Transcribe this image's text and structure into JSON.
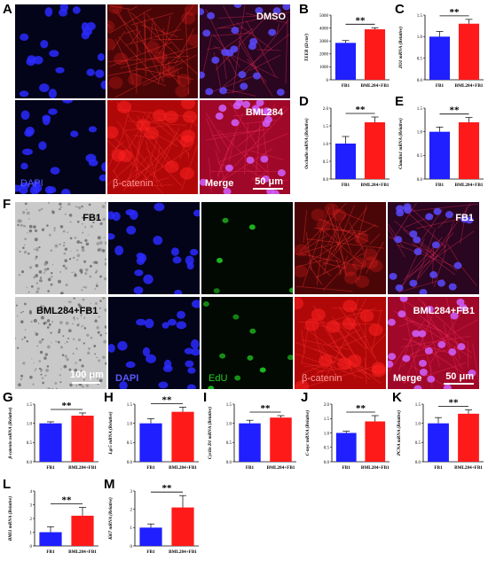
{
  "panel_letters": [
    "A",
    "B",
    "C",
    "D",
    "E",
    "F",
    "G",
    "H",
    "I",
    "J",
    "K",
    "L",
    "M"
  ],
  "panel_a": {
    "dmso": "DMSO",
    "bml284": "BML284",
    "dapi": "DAPI",
    "beta_catenin": "β-catenin",
    "merge": "Merge",
    "scale": "50 μm"
  },
  "panel_f": {
    "fb1": "FB1",
    "bml_fb1": "BML284+FB1",
    "scale_bright": "100 μm",
    "dapi": "DAPI",
    "edu": "EdU",
    "beta_catenin": "β-catenin",
    "merge": "Merge",
    "scale": "50 μm",
    "merge_fb1": "FB1",
    "merge_bml": "BML284+FB1"
  },
  "colors": {
    "blue": "#1f1fff",
    "red": "#ff1a1a",
    "dapi": "#2a2aff",
    "catenin": "#ff2020"
  },
  "chart_data": [
    {
      "id": "B",
      "type": "bar",
      "categories": [
        "FB1",
        "BML284+FB1"
      ],
      "values": [
        2850,
        3900
      ],
      "errors": [
        180,
        120
      ],
      "ylabel": "TEER (Ω·cm²)",
      "ylim": [
        0,
        5000
      ],
      "yticks": [
        "0",
        "1000",
        "2000",
        "3000",
        "4000",
        "5000"
      ],
      "sig": "**"
    },
    {
      "id": "C",
      "type": "bar",
      "categories": [
        "FB1",
        "BML284+FB1"
      ],
      "values": [
        1.0,
        1.3
      ],
      "errors": [
        0.12,
        0.1
      ],
      "ylabel": "ZO1 mRNA (Relative)",
      "ylim": [
        0,
        1.5
      ],
      "yticks": [
        "0.0",
        "0.5",
        "1.0",
        "1.5"
      ],
      "sig": "**"
    },
    {
      "id": "D",
      "type": "bar",
      "categories": [
        "FB1",
        "BML284+FB1"
      ],
      "values": [
        1.0,
        1.6
      ],
      "errors": [
        0.2,
        0.15
      ],
      "ylabel": "Occludin mRNA (Relative)",
      "ylim": [
        0,
        2
      ],
      "yticks": [
        "0.0",
        "0.5",
        "1.0",
        "1.5",
        "2.0"
      ],
      "sig": "**"
    },
    {
      "id": "E",
      "type": "bar",
      "categories": [
        "FB1",
        "BML284+FB1"
      ],
      "values": [
        1.0,
        1.2
      ],
      "errors": [
        0.1,
        0.1
      ],
      "ylabel": "Claudin1 mRNA (Relative)",
      "ylim": [
        0,
        1.5
      ],
      "yticks": [
        "0.0",
        "0.5",
        "1.0",
        "1.5"
      ],
      "sig": "**"
    },
    {
      "id": "G",
      "type": "bar",
      "categories": [
        "FB1",
        "BML284+FB1"
      ],
      "values": [
        1.0,
        1.2
      ],
      "errors": [
        0.04,
        0.07
      ],
      "ylabel": "β-catenin mRNA (Relative)",
      "ylim": [
        0,
        1.5
      ],
      "yticks": [
        "0.0",
        "0.5",
        "1.0",
        "1.5"
      ],
      "sig": "**"
    },
    {
      "id": "H",
      "type": "bar",
      "categories": [
        "FB1",
        "BML284+FB1"
      ],
      "values": [
        1.0,
        1.3
      ],
      "errors": [
        0.12,
        0.12
      ],
      "ylabel": "Lgr5 mRNA (Relative)",
      "ylim": [
        0,
        1.5
      ],
      "yticks": [
        "0.0",
        "0.5",
        "1.0",
        "1.5"
      ],
      "sig": "**"
    },
    {
      "id": "I",
      "type": "bar",
      "categories": [
        "FB1",
        "BML284+FB1"
      ],
      "values": [
        1.0,
        1.15
      ],
      "errors": [
        0.08,
        0.05
      ],
      "ylabel": "Cyclin D1 mRNA (Relative)",
      "ylim": [
        0,
        1.5
      ],
      "yticks": [
        "0.0",
        "0.5",
        "1.0",
        "1.5"
      ],
      "sig": "**"
    },
    {
      "id": "J",
      "type": "bar",
      "categories": [
        "FB1",
        "BML284+FB1"
      ],
      "values": [
        1.0,
        1.4
      ],
      "errors": [
        0.06,
        0.2
      ],
      "ylabel": "C-myc mRNA (Relative)",
      "ylim": [
        0,
        2
      ],
      "yticks": [
        "0.0",
        "0.5",
        "1.0",
        "1.5",
        "2.0"
      ],
      "sig": "**"
    },
    {
      "id": "K",
      "type": "bar",
      "categories": [
        "FB1",
        "BML284+FB1"
      ],
      "values": [
        1.0,
        1.25
      ],
      "errors": [
        0.15,
        0.1
      ],
      "ylabel": "PCNA mRNA (Relative)",
      "ylim": [
        0,
        1.5
      ],
      "yticks": [
        "0.0",
        "0.5",
        "1.0",
        "1.5"
      ],
      "sig": "**"
    },
    {
      "id": "L",
      "type": "bar",
      "categories": [
        "FB1",
        "BML284+FB1"
      ],
      "values": [
        1.0,
        2.2
      ],
      "errors": [
        0.4,
        0.6
      ],
      "ylabel": "BMI1 mRNA (Relative)",
      "ylim": [
        0,
        4
      ],
      "yticks": [
        "0",
        "1",
        "2",
        "3",
        "4"
      ],
      "sig": "**"
    },
    {
      "id": "M",
      "type": "bar",
      "categories": [
        "FB1",
        "BML284+FB1"
      ],
      "values": [
        1.0,
        2.1
      ],
      "errors": [
        0.2,
        0.65
      ],
      "ylabel": "Ki67 mRNA (Relative)",
      "ylim": [
        0,
        3
      ],
      "yticks": [
        "0",
        "1",
        "2",
        "3"
      ],
      "sig": "**"
    }
  ]
}
